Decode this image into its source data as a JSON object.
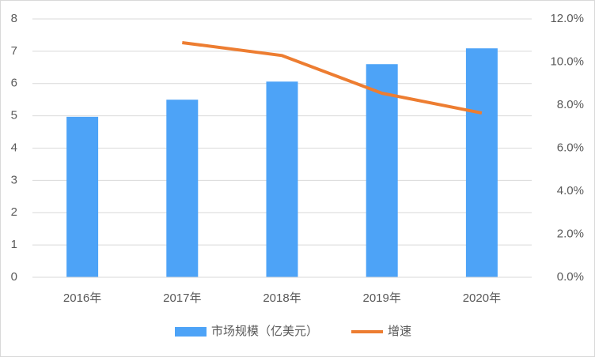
{
  "chart_data": {
    "type": "bar",
    "categories": [
      "2016年",
      "2017年",
      "2018年",
      "2019年",
      "2020年"
    ],
    "series": [
      {
        "name": "市场规模（亿美元）",
        "color": "#4da3f7",
        "type": "bar",
        "values": [
          4.97,
          5.5,
          6.06,
          6.6,
          7.09
        ]
      },
      {
        "name": "增速",
        "color": "#ed7d31",
        "type": "line",
        "axis": "y2",
        "values": [
          null,
          10.9,
          10.3,
          8.55,
          7.63
        ]
      }
    ],
    "ylim": [
      0,
      8
    ],
    "yticks": [
      0,
      1,
      2,
      3,
      4,
      5,
      6,
      7,
      8
    ],
    "y2lim": [
      0,
      12
    ],
    "y2ticks": [
      {
        "value": 0,
        "label": "0.0%"
      },
      {
        "value": 2,
        "label": "2.0%"
      },
      {
        "value": 4,
        "label": "4.0%"
      },
      {
        "value": 6,
        "label": "6.0%"
      },
      {
        "value": 8,
        "label": "8.0%"
      },
      {
        "value": 10,
        "label": "10.0%"
      },
      {
        "value": 12,
        "label": "12.0%"
      }
    ],
    "grid": true,
    "legend": "bottom"
  }
}
